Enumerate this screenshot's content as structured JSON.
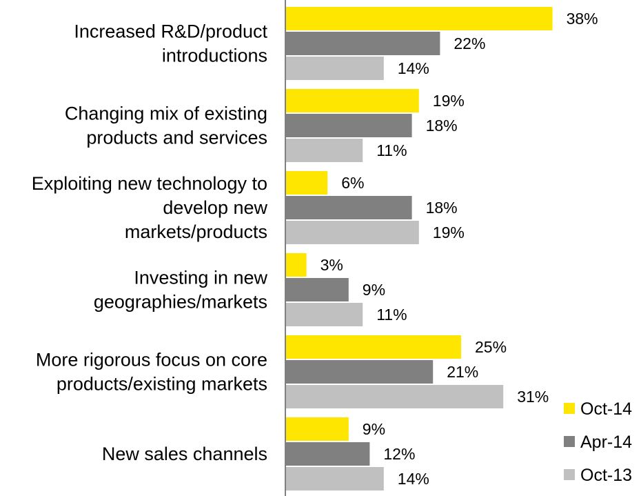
{
  "chart_data": {
    "type": "bar",
    "orientation": "horizontal",
    "title": "",
    "xlabel": "",
    "ylabel": "",
    "xlim": [
      0,
      40
    ],
    "grid": false,
    "value_suffix": "%",
    "legend_position": "bottom-right",
    "categories": [
      [
        "Increased R&D/product",
        "introductions"
      ],
      [
        "Changing mix of existing",
        "products and services"
      ],
      [
        "Exploiting new technology to",
        "develop new",
        "markets/products"
      ],
      [
        "Investing in new",
        "geographies/markets"
      ],
      [
        "More rigorous focus on core",
        "products/existing markets"
      ],
      [
        "New sales channels"
      ]
    ],
    "series": [
      {
        "name": "Oct-14",
        "color": "#FFE600",
        "values": [
          38,
          19,
          6,
          3,
          25,
          9
        ]
      },
      {
        "name": "Apr-14",
        "color": "#808080",
        "values": [
          22,
          18,
          18,
          9,
          21,
          12
        ]
      },
      {
        "name": "Oct-13",
        "color": "#C0C0C0",
        "values": [
          14,
          11,
          19,
          11,
          31,
          14
        ]
      }
    ]
  }
}
